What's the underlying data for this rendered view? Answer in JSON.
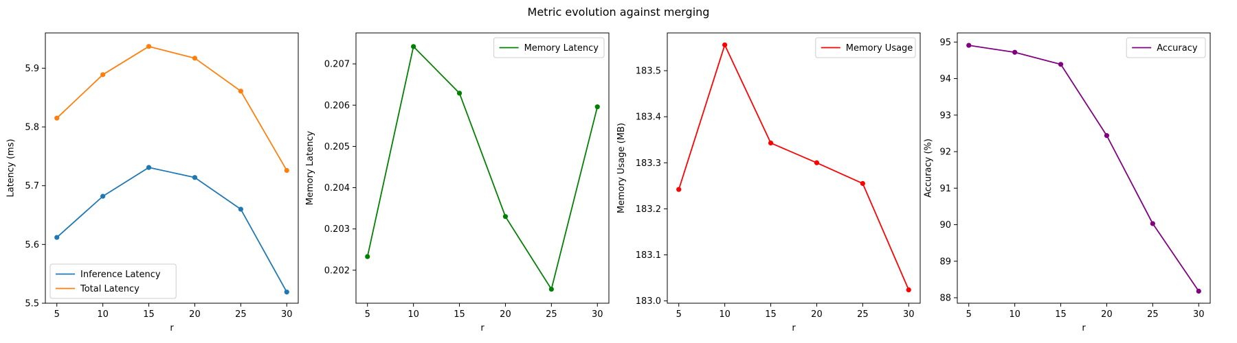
{
  "figure": {
    "title": "Metric evolution against merging"
  },
  "chart_data": [
    {
      "type": "line",
      "xlabel": "r",
      "ylabel": "Latency (ms)",
      "x": [
        5,
        10,
        15,
        20,
        25,
        30
      ],
      "xticks": [
        "5",
        "10",
        "15",
        "20",
        "25",
        "30"
      ],
      "ylim": [
        5.5,
        5.96
      ],
      "yticks": [
        "5.5",
        "5.6",
        "5.7",
        "5.8",
        "5.9"
      ],
      "legend_position": "lower-left",
      "series": [
        {
          "name": "Inference Latency",
          "color": "#1f77b4",
          "values": [
            5.612,
            5.682,
            5.731,
            5.714,
            5.66,
            5.519
          ]
        },
        {
          "name": "Total Latency",
          "color": "#ff7f0e",
          "values": [
            5.815,
            5.889,
            5.937,
            5.917,
            5.861,
            5.726
          ]
        }
      ]
    },
    {
      "type": "line",
      "xlabel": "r",
      "ylabel": "Memory Latency",
      "x": [
        5,
        10,
        15,
        20,
        25,
        30
      ],
      "xticks": [
        "5",
        "10",
        "15",
        "20",
        "25",
        "30"
      ],
      "ylim": [
        0.2012,
        0.20775
      ],
      "yticks": [
        "0.202",
        "0.203",
        "0.204",
        "0.205",
        "0.206",
        "0.207"
      ],
      "legend_position": "upper-right",
      "series": [
        {
          "name": "Memory Latency",
          "color": "#008000",
          "values": [
            0.20233,
            0.20742,
            0.20629,
            0.2033,
            0.20154,
            0.20596
          ]
        }
      ]
    },
    {
      "type": "line",
      "xlabel": "r",
      "ylabel": "Memory Usage (MB)",
      "x": [
        5,
        10,
        15,
        20,
        25,
        30
      ],
      "xticks": [
        "5",
        "10",
        "15",
        "20",
        "25",
        "30"
      ],
      "ylim": [
        182.995,
        183.582
      ],
      "yticks": [
        "183.0",
        "183.1",
        "183.2",
        "183.3",
        "183.4",
        "183.5"
      ],
      "legend_position": "upper-right",
      "series": [
        {
          "name": "Memory Usage",
          "color": "#ff0000",
          "values": [
            183.242,
            183.556,
            183.343,
            183.3,
            183.255,
            183.024
          ]
        }
      ]
    },
    {
      "type": "line",
      "xlabel": "r",
      "ylabel": "Accuracy (%)",
      "x": [
        5,
        10,
        15,
        20,
        25,
        30
      ],
      "xticks": [
        "5",
        "10",
        "15",
        "20",
        "25",
        "30"
      ],
      "ylim": [
        87.85,
        95.25
      ],
      "yticks": [
        "88",
        "89",
        "90",
        "91",
        "92",
        "93",
        "94",
        "95"
      ],
      "legend_position": "upper-right",
      "series": [
        {
          "name": "Accuracy",
          "color": "#800080",
          "values": [
            94.91,
            94.72,
            94.39,
            92.44,
            90.03,
            88.18
          ]
        }
      ]
    }
  ]
}
